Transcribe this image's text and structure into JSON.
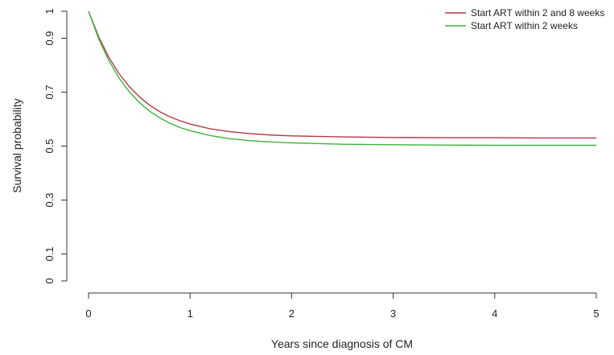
{
  "chart_data": {
    "type": "line",
    "title": "",
    "xlabel": "Years since diagnosis of CM",
    "ylabel": "Survival probability",
    "xlim": [
      0,
      5
    ],
    "ylim": [
      0,
      1
    ],
    "x_ticks": [
      0,
      1,
      2,
      3,
      4,
      5
    ],
    "x_tick_labels": [
      "0",
      "1",
      "2",
      "3",
      "4",
      "5"
    ],
    "y_ticks": [
      0,
      0.1,
      0.3,
      0.5,
      0.7,
      0.9,
      1
    ],
    "y_tick_labels": [
      "0",
      "0.1",
      "0.3",
      "0.5",
      "0.7",
      "0.9",
      "1"
    ],
    "grid": false,
    "legend_position": "top-right",
    "x": [
      0,
      0.1,
      0.2,
      0.3,
      0.4,
      0.5,
      0.6,
      0.7,
      0.8,
      0.9,
      1.0,
      1.2,
      1.4,
      1.6,
      1.8,
      2.0,
      2.5,
      3.0,
      3.5,
      4.0,
      4.5,
      5.0
    ],
    "series": [
      {
        "name": "Start ART within 2 and 8 weeks",
        "color": "#b03a48",
        "values": [
          1.0,
          0.905,
          0.829,
          0.769,
          0.721,
          0.683,
          0.652,
          0.628,
          0.609,
          0.594,
          0.582,
          0.564,
          0.553,
          0.546,
          0.541,
          0.538,
          0.534,
          0.532,
          0.531,
          0.531,
          0.53,
          0.53
        ]
      },
      {
        "name": "Start ART within 2 weeks",
        "color": "#3cb43c",
        "values": [
          1.0,
          0.898,
          0.817,
          0.753,
          0.702,
          0.662,
          0.63,
          0.605,
          0.585,
          0.569,
          0.557,
          0.539,
          0.527,
          0.52,
          0.515,
          0.512,
          0.507,
          0.505,
          0.504,
          0.503,
          0.503,
          0.503
        ]
      }
    ]
  }
}
